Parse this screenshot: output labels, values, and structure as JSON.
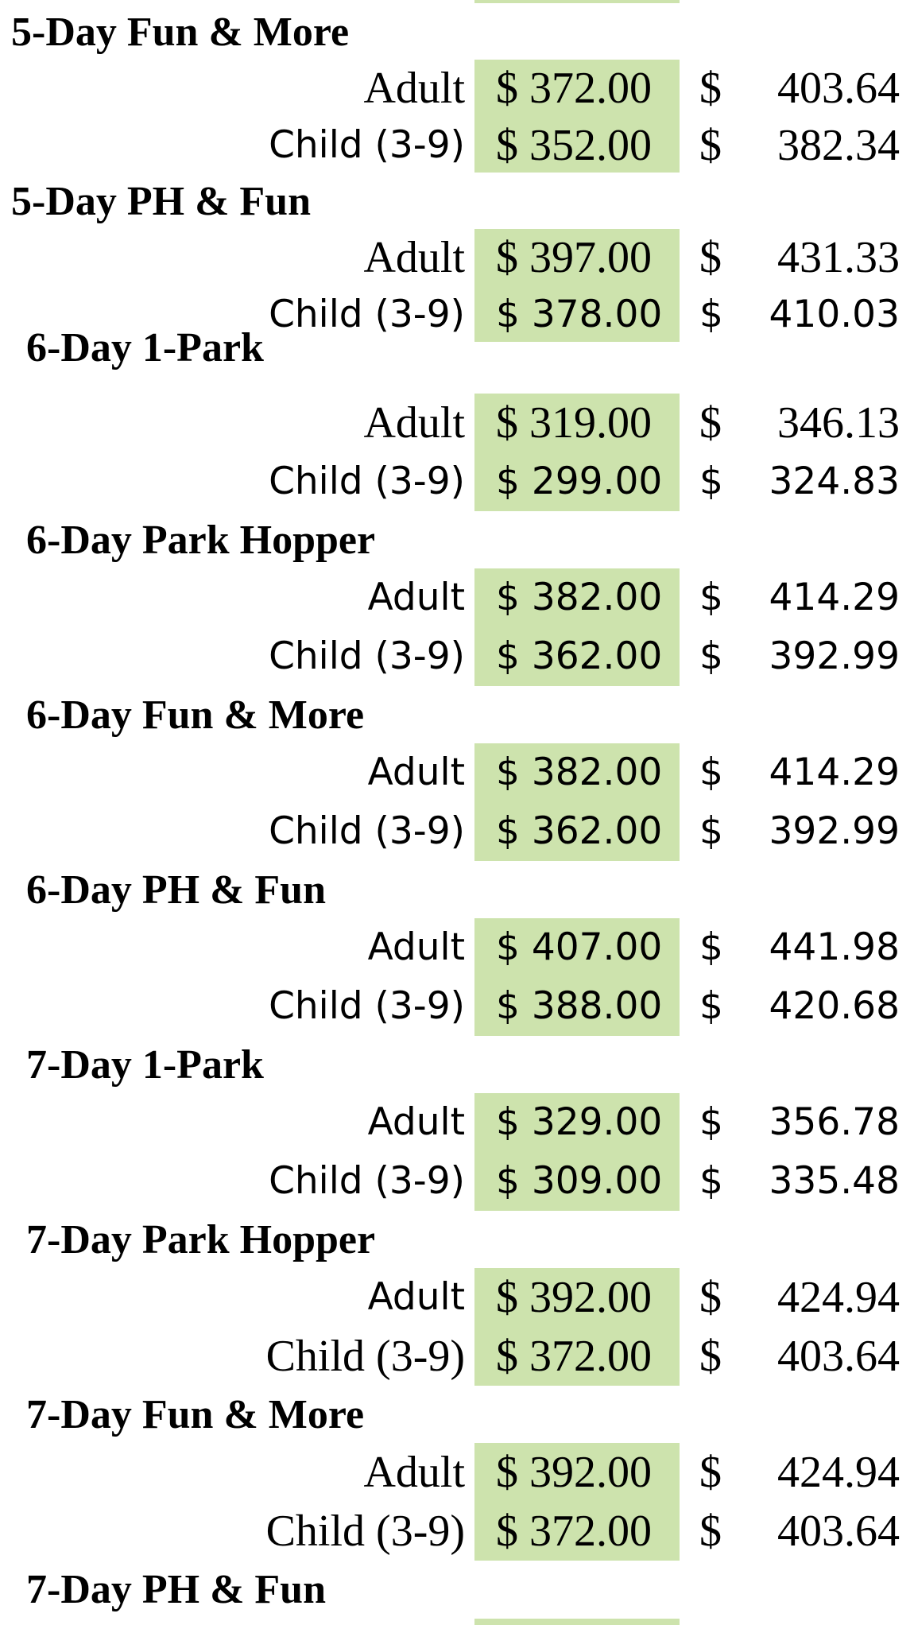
{
  "accent_color": "#cde3ad",
  "sections": [
    {
      "title": "5-Day Fun & More",
      "rows": [
        {
          "label": "Adult",
          "price": "$ 372.00",
          "symbol": "$",
          "amount": "403.64"
        },
        {
          "label": "Child (3-9)",
          "price": "$ 352.00",
          "symbol": "$",
          "amount": "382.34"
        }
      ]
    },
    {
      "title": "5-Day PH & Fun",
      "rows": [
        {
          "label": "Adult",
          "price": "$ 397.00",
          "symbol": "$",
          "amount": "431.33"
        },
        {
          "label": "Child (3-9)",
          "price": "$ 378.00",
          "symbol": "$",
          "amount": "410.03"
        }
      ]
    },
    {
      "title": "6-Day 1-Park",
      "rows": [
        {
          "label": "Adult",
          "price": "$ 319.00",
          "symbol": "$",
          "amount": "346.13"
        },
        {
          "label": "Child (3-9)",
          "price": "$ 299.00",
          "symbol": "$",
          "amount": "324.83"
        }
      ]
    },
    {
      "title": "6-Day Park Hopper",
      "rows": [
        {
          "label": "Adult",
          "price": "$ 382.00",
          "symbol": "$",
          "amount": "414.29"
        },
        {
          "label": "Child (3-9)",
          "price": "$ 362.00",
          "symbol": "$",
          "amount": "392.99"
        }
      ]
    },
    {
      "title": "6-Day Fun & More",
      "rows": [
        {
          "label": "Adult",
          "price": "$ 382.00",
          "symbol": "$",
          "amount": "414.29"
        },
        {
          "label": "Child (3-9)",
          "price": "$ 362.00",
          "symbol": "$",
          "amount": "392.99"
        }
      ]
    },
    {
      "title": "6-Day PH & Fun",
      "rows": [
        {
          "label": "Adult",
          "price": "$ 407.00",
          "symbol": "$",
          "amount": "441.98"
        },
        {
          "label": "Child (3-9)",
          "price": "$ 388.00",
          "symbol": "$",
          "amount": "420.68"
        }
      ]
    },
    {
      "title": "7-Day 1-Park",
      "rows": [
        {
          "label": "Adult",
          "price": "$ 329.00",
          "symbol": "$",
          "amount": "356.78"
        },
        {
          "label": "Child (3-9)",
          "price": "$ 309.00",
          "symbol": "$",
          "amount": "335.48"
        }
      ]
    },
    {
      "title": "7-Day Park Hopper",
      "rows": [
        {
          "label": "Adult",
          "price": "$ 392.00",
          "symbol": "$",
          "amount": "424.94"
        },
        {
          "label": "Child (3-9)",
          "price": "$ 372.00",
          "symbol": "$",
          "amount": "403.64"
        }
      ]
    },
    {
      "title": "7-Day Fun & More",
      "rows": [
        {
          "label": "Adult",
          "price": "$ 392.00",
          "symbol": "$",
          "amount": "424.94"
        },
        {
          "label": "Child (3-9)",
          "price": "$ 372.00",
          "symbol": "$",
          "amount": "403.64"
        }
      ]
    },
    {
      "title": "7-Day PH & Fun",
      "rows": []
    }
  ]
}
